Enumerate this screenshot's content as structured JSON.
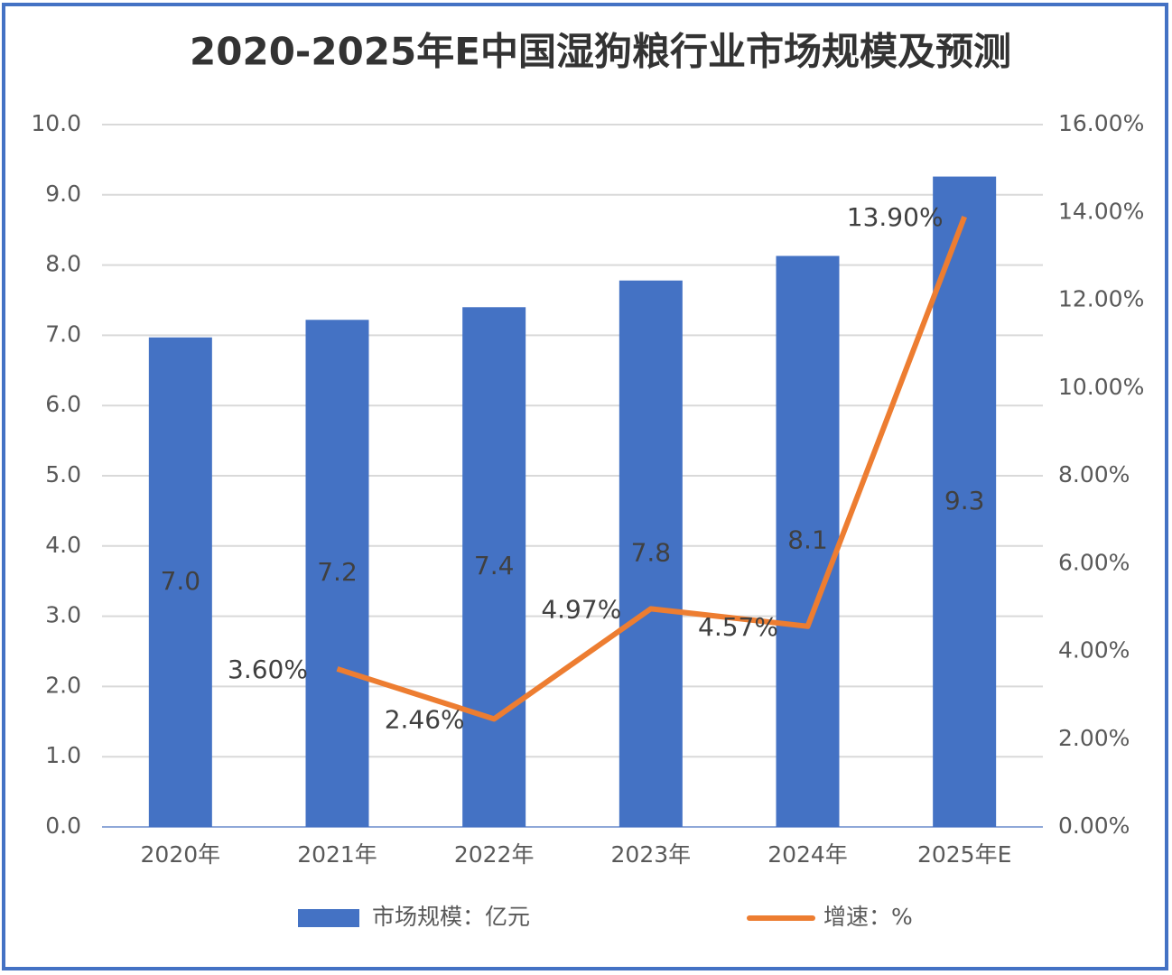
{
  "chart_data": {
    "type": "bar-line",
    "title": "2020-2025年E中国湿狗粮行业市场规模及预测",
    "categories": [
      "2020年",
      "2021年",
      "2022年",
      "2023年",
      "2024年",
      "2025年E"
    ],
    "series": [
      {
        "name": "市场规模：亿元",
        "color": "#4472c4",
        "type": "bar",
        "values": [
          6.97,
          7.22,
          7.4,
          7.78,
          8.13,
          9.26
        ],
        "value_labels": [
          "7.0",
          "7.2",
          "7.4",
          "7.8",
          "8.1",
          "9.3"
        ]
      },
      {
        "name": "增速：%",
        "color": "#ed7d31",
        "type": "line",
        "axis": "y2",
        "values": [
          null,
          3.6,
          2.46,
          4.97,
          4.57,
          13.9
        ],
        "value_labels": [
          null,
          "3.60%",
          "2.46%",
          "4.97%",
          "4.57%",
          "13.90%"
        ]
      }
    ],
    "ylim": [
      0,
      10
    ],
    "yticks": [
      {
        "value": 0,
        "label": "0.0"
      },
      {
        "value": 1,
        "label": "1.0"
      },
      {
        "value": 2,
        "label": "2.0"
      },
      {
        "value": 3,
        "label": "3.0"
      },
      {
        "value": 4,
        "label": "4.0"
      },
      {
        "value": 5,
        "label": "5.0"
      },
      {
        "value": 6,
        "label": "6.0"
      },
      {
        "value": 7,
        "label": "7.0"
      },
      {
        "value": 8,
        "label": "8.0"
      },
      {
        "value": 9,
        "label": "9.0"
      },
      {
        "value": 10,
        "label": "10.0"
      }
    ],
    "y2lim": [
      0,
      16
    ],
    "y2ticks": [
      {
        "value": 0,
        "label": "0.00%"
      },
      {
        "value": 2,
        "label": "2.00%"
      },
      {
        "value": 4,
        "label": "4.00%"
      },
      {
        "value": 6,
        "label": "6.00%"
      },
      {
        "value": 8,
        "label": "8.00%"
      },
      {
        "value": 10,
        "label": "10.00%"
      },
      {
        "value": 12,
        "label": "12.00%"
      },
      {
        "value": 14,
        "label": "14.00%"
      },
      {
        "value": 16,
        "label": "16.00%"
      }
    ],
    "grid": true
  }
}
